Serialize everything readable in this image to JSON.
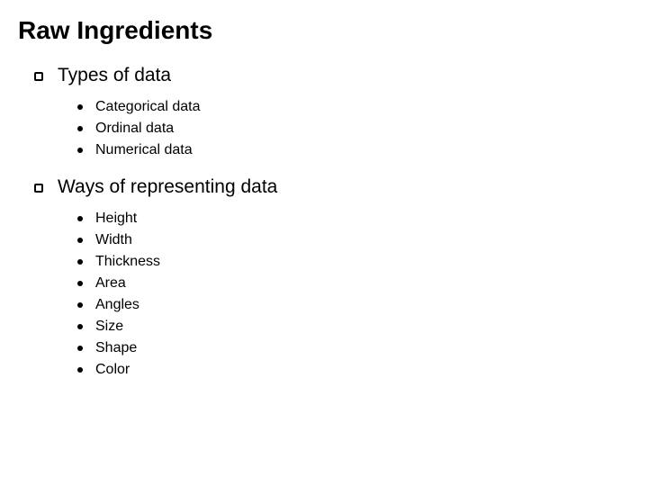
{
  "title": "Raw Ingredients",
  "sections": [
    {
      "heading": "Types of data",
      "items": [
        "Categorical data",
        "Ordinal data",
        "Numerical data"
      ]
    },
    {
      "heading": "Ways of representing data",
      "items": [
        "Height",
        "Width",
        "Thickness",
        "Area",
        "Angles",
        "Size",
        "Shape",
        "Color"
      ]
    }
  ],
  "style": {
    "background_color": "#ffffff",
    "text_color": "#000000",
    "title_fontsize": 28,
    "title_fontweight": "bold",
    "section_heading_fontsize": 21,
    "sub_item_fontsize": 16,
    "hollow_bullet_border": "#000000",
    "solid_bullet_color": "#000000"
  }
}
